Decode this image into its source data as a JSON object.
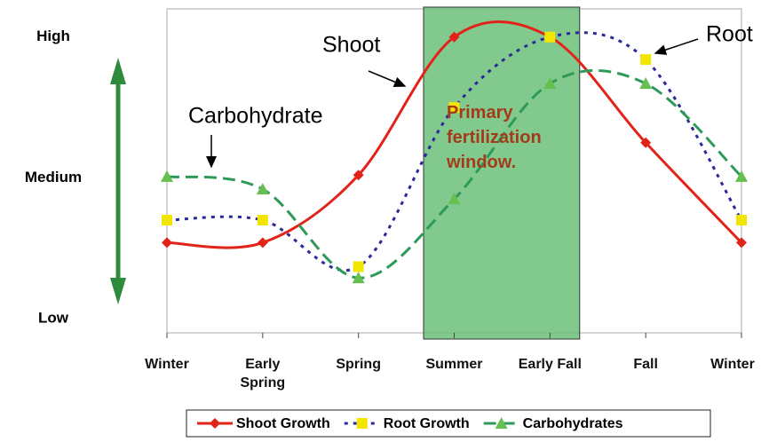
{
  "chart_data": {
    "type": "line",
    "categories": [
      "Winter",
      "Early Spring",
      "Spring",
      "Summer",
      "Early Fall",
      "Fall",
      "Winter"
    ],
    "ylim": [
      0.9,
      3.2
    ],
    "yticks": [
      {
        "value": 3,
        "label": "High"
      },
      {
        "value": 2,
        "label": "Medium"
      },
      {
        "value": 1,
        "label": "Low"
      }
    ],
    "smooth": true,
    "series": [
      {
        "name": "Shoot Growth",
        "color": "#e2231a",
        "marker_color": "#e2231a",
        "marker": "diamond",
        "dash": "solid",
        "values": [
          1.54,
          1.54,
          2.02,
          3.0,
          3.0,
          2.25,
          1.54
        ]
      },
      {
        "name": "Root Growth",
        "color": "#2a2a9a",
        "marker_color": "#f2e600",
        "marker": "square",
        "dash": "dotted",
        "values": [
          1.7,
          1.7,
          1.37,
          2.5,
          3.0,
          2.84,
          1.7
        ]
      },
      {
        "name": "Carbohydrates",
        "color": "#2e9a5a",
        "marker_color": "#66c050",
        "marker": "triangle",
        "dash": "dashed",
        "values": [
          2.01,
          1.92,
          1.29,
          1.85,
          2.67,
          2.67,
          2.01
        ]
      }
    ],
    "annotations": {
      "shoot": "Shoot",
      "root": "Root",
      "carbohydrate": "Carbohydrate",
      "window": "Primary fertilization window."
    },
    "legend": "bottom"
  }
}
